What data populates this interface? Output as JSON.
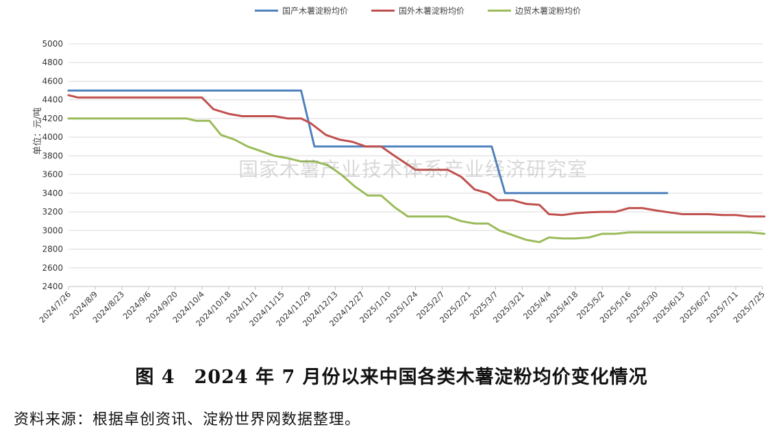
{
  "chart_data": {
    "type": "line",
    "ylabel": "单位：元/吨",
    "ylim": [
      2400,
      5000
    ],
    "yticks": [
      2400,
      2600,
      2800,
      3000,
      3200,
      3400,
      3600,
      3800,
      4000,
      4200,
      4400,
      4600,
      4800,
      5000
    ],
    "grid": true,
    "legend_position": "top",
    "x_ticks": [
      "2024/7/26",
      "2024/8/9",
      "2024/8/23",
      "2024/9/6",
      "2024/9/20",
      "2024/10/4",
      "2024/10/18",
      "2024/11/1",
      "2024/11/15",
      "2024/11/29",
      "2024/12/13",
      "2024/12/27",
      "2025/1/10",
      "2025/1/24",
      "2025/2/7",
      "2025/2/21",
      "2025/3/7",
      "2025/3/21",
      "2025/4/4",
      "2025/4/18",
      "2025/5/2",
      "2025/5/16",
      "2025/5/30",
      "2025/6/13",
      "2025/6/27",
      "2025/7/11",
      "2025/7/25"
    ],
    "series": [
      {
        "name": "国产木薯淀粉均价",
        "color": "#4f81bd",
        "points": [
          [
            "2024/7/26",
            4500
          ],
          [
            "2024/11/25",
            4500
          ],
          [
            "2024/12/2",
            3900
          ],
          [
            "2025/3/5",
            3900
          ],
          [
            "2025/3/12",
            3400
          ],
          [
            "2025/6/5",
            3400
          ]
        ]
      },
      {
        "name": "国外木薯淀粉均价",
        "color": "#c0504d",
        "points": [
          [
            "2024/7/26",
            4450
          ],
          [
            "2024/7/31",
            4425
          ],
          [
            "2024/10/4",
            4425
          ],
          [
            "2024/10/10",
            4300
          ],
          [
            "2024/10/18",
            4250
          ],
          [
            "2024/10/25",
            4225
          ],
          [
            "2024/11/11",
            4225
          ],
          [
            "2024/11/18",
            4200
          ],
          [
            "2024/11/25",
            4200
          ],
          [
            "2024/11/30",
            4150
          ],
          [
            "2024/12/8",
            4025
          ],
          [
            "2024/12/15",
            3975
          ],
          [
            "2024/12/22",
            3950
          ],
          [
            "2024/12/29",
            3900
          ],
          [
            "2025/1/6",
            3900
          ],
          [
            "2025/1/13",
            3800
          ],
          [
            "2025/1/24",
            3650
          ],
          [
            "2025/2/10",
            3650
          ],
          [
            "2025/2/17",
            3575
          ],
          [
            "2025/2/24",
            3440
          ],
          [
            "2025/3/3",
            3400
          ],
          [
            "2025/3/8",
            3325
          ],
          [
            "2025/3/16",
            3325
          ],
          [
            "2025/3/23",
            3285
          ],
          [
            "2025/3/30",
            3275
          ],
          [
            "2025/4/4",
            3175
          ],
          [
            "2025/4/11",
            3165
          ],
          [
            "2025/4/18",
            3185
          ],
          [
            "2025/4/25",
            3195
          ],
          [
            "2025/5/2",
            3200
          ],
          [
            "2025/5/9",
            3200
          ],
          [
            "2025/5/16",
            3240
          ],
          [
            "2025/5/23",
            3240
          ],
          [
            "2025/5/30",
            3215
          ],
          [
            "2025/6/6",
            3195
          ],
          [
            "2025/6/13",
            3175
          ],
          [
            "2025/6/27",
            3175
          ],
          [
            "2025/7/4",
            3165
          ],
          [
            "2025/7/11",
            3165
          ],
          [
            "2025/7/18",
            3150
          ],
          [
            "2025/7/26",
            3150
          ]
        ]
      },
      {
        "name": "边贸木薯淀粉均价",
        "color": "#9bbb59",
        "points": [
          [
            "2024/7/26",
            4200
          ],
          [
            "2024/9/26",
            4200
          ],
          [
            "2024/10/1",
            4175
          ],
          [
            "2024/10/8",
            4175
          ],
          [
            "2024/10/14",
            4025
          ],
          [
            "2024/10/21",
            3975
          ],
          [
            "2024/10/28",
            3900
          ],
          [
            "2024/11/4",
            3850
          ],
          [
            "2024/11/11",
            3800
          ],
          [
            "2024/11/18",
            3775
          ],
          [
            "2024/11/25",
            3740
          ],
          [
            "2024/12/2",
            3740
          ],
          [
            "2024/12/9",
            3700
          ],
          [
            "2024/12/16",
            3600
          ],
          [
            "2024/12/23",
            3475
          ],
          [
            "2024/12/30",
            3375
          ],
          [
            "2025/1/6",
            3375
          ],
          [
            "2025/1/13",
            3250
          ],
          [
            "2025/1/20",
            3150
          ],
          [
            "2025/2/10",
            3150
          ],
          [
            "2025/2/17",
            3100
          ],
          [
            "2025/2/24",
            3075
          ],
          [
            "2025/3/3",
            3075
          ],
          [
            "2025/3/9",
            3000
          ],
          [
            "2025/3/16",
            2950
          ],
          [
            "2025/3/23",
            2900
          ],
          [
            "2025/3/30",
            2875
          ],
          [
            "2025/4/4",
            2925
          ],
          [
            "2025/4/11",
            2915
          ],
          [
            "2025/4/18",
            2915
          ],
          [
            "2025/4/25",
            2925
          ],
          [
            "2025/5/2",
            2965
          ],
          [
            "2025/5/9",
            2965
          ],
          [
            "2025/5/16",
            2980
          ],
          [
            "2025/7/18",
            2980
          ],
          [
            "2025/7/26",
            2965
          ]
        ]
      }
    ]
  },
  "watermark": "国家木薯产业技术体系产业经济研究室",
  "caption": "图 4　2024 年 7 月份以来中国各类木薯淀粉均价变化情况",
  "source": "资料来源：根据卓创资讯、淀粉世界网数据整理。"
}
